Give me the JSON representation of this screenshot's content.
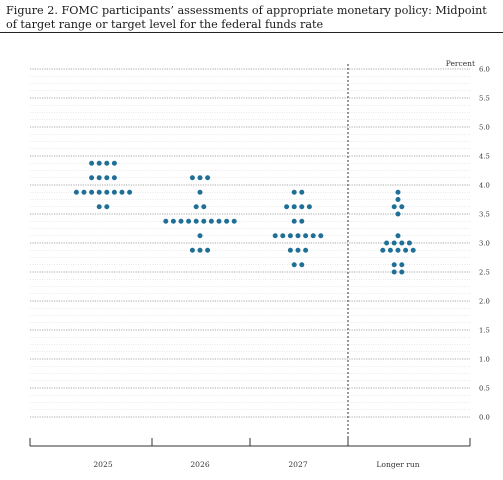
{
  "figure": {
    "title": "Figure 2.  FOMC participants’ assessments of appropriate monetary policy: Midpoint of target range or target level for the federal funds rate"
  },
  "chart_data": {
    "type": "scatter",
    "title": "",
    "xlabel": "",
    "ylabel": "",
    "unit_label": "Percent",
    "categories": [
      "2025",
      "2026",
      "2027",
      "Longer run"
    ],
    "ylim": [
      0,
      6
    ],
    "ytick_step": 0.5,
    "ytick_labels": [
      "0.0",
      "0.5",
      "1.0",
      "1.5",
      "2.0",
      "2.5",
      "3.0",
      "3.5",
      "4.0",
      "4.5",
      "5.0",
      "5.5",
      "6.0"
    ],
    "minor_gridline_step": 0.125,
    "dot_color": "#1f6f96",
    "dots": [
      {
        "category": "2025",
        "y": 4.375,
        "count": 4
      },
      {
        "category": "2025",
        "y": 4.125,
        "count": 4
      },
      {
        "category": "2025",
        "y": 3.875,
        "count": 8
      },
      {
        "category": "2025",
        "y": 3.625,
        "count": 2
      },
      {
        "category": "2026",
        "y": 4.125,
        "count": 3
      },
      {
        "category": "2026",
        "y": 3.875,
        "count": 1
      },
      {
        "category": "2026",
        "y": 3.625,
        "count": 2
      },
      {
        "category": "2026",
        "y": 3.375,
        "count": 10
      },
      {
        "category": "2026",
        "y": 3.125,
        "count": 1
      },
      {
        "category": "2026",
        "y": 2.875,
        "count": 3
      },
      {
        "category": "2027",
        "y": 3.875,
        "count": 2
      },
      {
        "category": "2027",
        "y": 3.625,
        "count": 4
      },
      {
        "category": "2027",
        "y": 3.375,
        "count": 2
      },
      {
        "category": "2027",
        "y": 3.125,
        "count": 7
      },
      {
        "category": "2027",
        "y": 2.875,
        "count": 3
      },
      {
        "category": "2027",
        "y": 2.625,
        "count": 2
      },
      {
        "category": "Longer run",
        "y": 3.875,
        "count": 1
      },
      {
        "category": "Longer run",
        "y": 3.75,
        "count": 1
      },
      {
        "category": "Longer run",
        "y": 3.625,
        "count": 2
      },
      {
        "category": "Longer run",
        "y": 3.5,
        "count": 1
      },
      {
        "category": "Longer run",
        "y": 3.125,
        "count": 1
      },
      {
        "category": "Longer run",
        "y": 3.0,
        "count": 4
      },
      {
        "category": "Longer run",
        "y": 2.875,
        "count": 5
      },
      {
        "category": "Longer run",
        "y": 2.625,
        "count": 2
      },
      {
        "category": "Longer run",
        "y": 2.5,
        "count": 2
      }
    ]
  }
}
